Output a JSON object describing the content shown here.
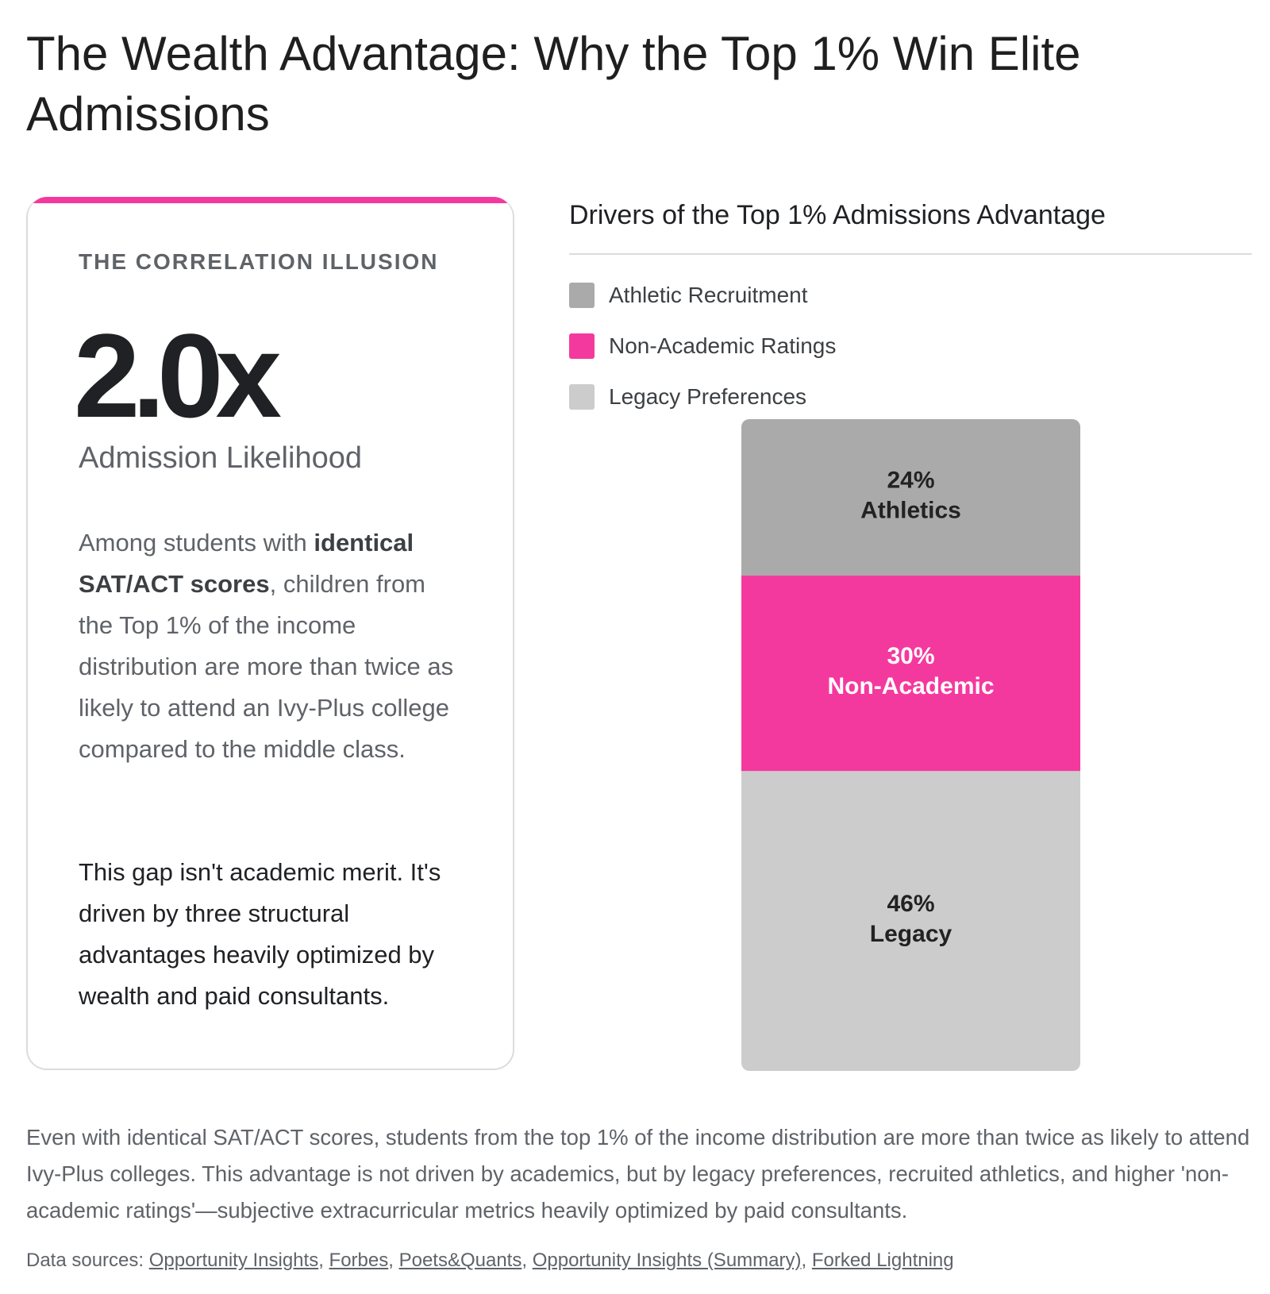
{
  "header": {
    "title": "The Wealth Advantage: Why the Top 1% Win Elite Admissions"
  },
  "card": {
    "kicker": "THE CORRELATION ILLUSION",
    "stat": "2.0x",
    "stat_label": "Admission Likelihood",
    "body": [
      {
        "text": "Among students with ",
        "bold": false
      },
      {
        "text": "identical SAT/ACT scores",
        "bold": true
      },
      {
        "text": ", children from the Top 1% of the income distribution are more than twice as likely to attend an Ivy-Plus college compared to the middle class.",
        "bold": false
      }
    ],
    "note": "This gap isn't academic merit. It's driven by three structural advantages heavily optimized by wealth and paid consultants."
  },
  "chart_data": {
    "type": "stacked-bar",
    "title": "Drivers of the Top 1% Admissions Advantage",
    "categories": [
      null
    ],
    "ylim": [
      0,
      100
    ],
    "series": [
      {
        "name": "Athletic Recruitment",
        "color": "#aaaaaa",
        "label_color": "#222222",
        "values": [
          24
        ],
        "value_labels": [
          "24%"
        ],
        "label": "Athletics"
      },
      {
        "name": "Non-Academic Ratings",
        "color": "#f4399e",
        "label_color": "#ffffff",
        "values": [
          30
        ],
        "value_labels": [
          "30%"
        ],
        "label": "Non-Academic"
      },
      {
        "name": "Legacy Preferences",
        "color": "#cccccc",
        "label_color": "#222222",
        "values": [
          46
        ],
        "value_labels": [
          "46%"
        ],
        "label": "Legacy"
      }
    ]
  },
  "footer": {
    "summary": "Even with identical SAT/ACT scores, students from the top 1% of the income distribution are more than twice as likely to attend Ivy-Plus colleges. This advantage is not driven by academics, but by legacy preferences, recruited athletics, and higher 'non-academic ratings'—subjective extracurricular metrics heavily optimized by paid consultants.",
    "sources_label": "Data sources:",
    "separator": ", ",
    "sources": [
      "Opportunity Insights",
      "Forbes",
      "Poets&Quants",
      "Opportunity Insights (Summary)",
      "Forked Lightning"
    ]
  }
}
